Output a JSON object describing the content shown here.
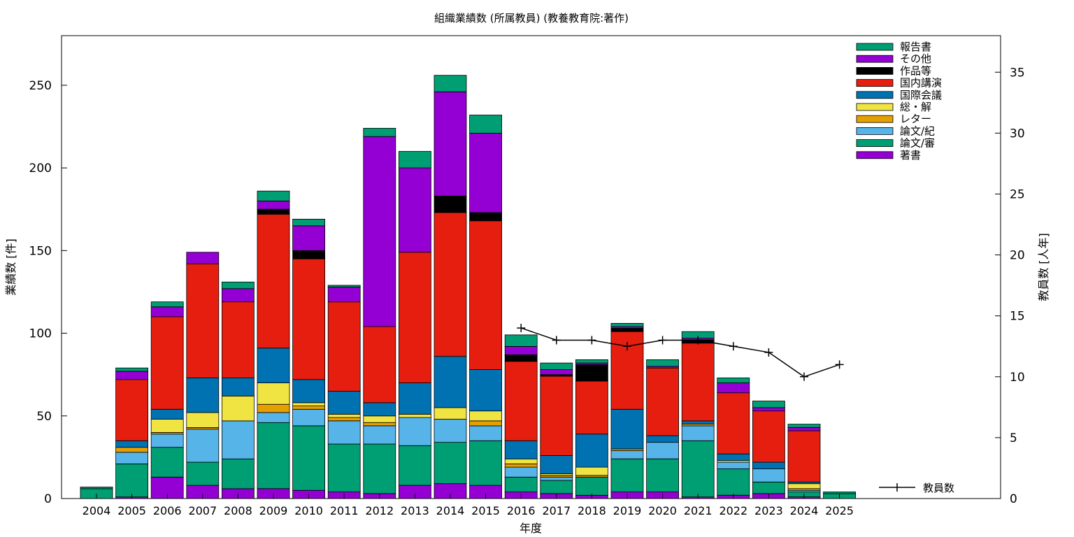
{
  "chart_data": {
    "type": "bar",
    "stacked": true,
    "title": "組織業績数 (所属教員) (教養教育院:著作)",
    "xlabel": "年度",
    "ylabel": "業績数 [件]",
    "y2label": "教員数 [人年]",
    "ylim": [
      0,
      280
    ],
    "y2lim": [
      0,
      38
    ],
    "yticks": [
      0,
      50,
      100,
      150,
      200,
      250
    ],
    "y2ticks": [
      0,
      5,
      10,
      15,
      20,
      25,
      30,
      35
    ],
    "grid": false,
    "legend_position": "top-right",
    "categories": [
      "2004",
      "2005",
      "2006",
      "2007",
      "2008",
      "2009",
      "2010",
      "2011",
      "2012",
      "2013",
      "2014",
      "2015",
      "2016",
      "2017",
      "2018",
      "2019",
      "2020",
      "2021",
      "2022",
      "2023",
      "2024",
      "2025"
    ],
    "series": [
      {
        "name": "著書",
        "color": "#9400d3",
        "values": [
          0,
          1,
          13,
          8,
          6,
          6,
          5,
          4,
          3,
          8,
          9,
          8,
          4,
          3,
          2,
          4,
          4,
          1,
          2,
          3,
          1,
          0
        ]
      },
      {
        "name": "論文/審",
        "color": "#009e73",
        "values": [
          6,
          20,
          18,
          14,
          18,
          40,
          39,
          29,
          30,
          24,
          25,
          27,
          9,
          8,
          11,
          20,
          20,
          34,
          16,
          7,
          3,
          3
        ]
      },
      {
        "name": "論文/紀",
        "color": "#56b4e9",
        "values": [
          0,
          7,
          8,
          20,
          23,
          6,
          10,
          14,
          11,
          17,
          14,
          9,
          6,
          2,
          0,
          5,
          10,
          9,
          4,
          8,
          1,
          0
        ]
      },
      {
        "name": "レター",
        "color": "#e69f00",
        "values": [
          0,
          3,
          1,
          1,
          0,
          5,
          2,
          2,
          2,
          0,
          0,
          3,
          2,
          1,
          1,
          1,
          0,
          1,
          0,
          0,
          1,
          0
        ]
      },
      {
        "name": "総・解",
        "color": "#f0e442",
        "values": [
          0,
          0,
          8,
          9,
          15,
          13,
          2,
          2,
          4,
          2,
          7,
          6,
          3,
          1,
          5,
          0,
          0,
          0,
          1,
          0,
          3,
          0
        ],
        "note": ""
      },
      {
        "name": "国際会議",
        "color": "#0072b2",
        "values": [
          0,
          4,
          6,
          21,
          11,
          21,
          14,
          14,
          8,
          19,
          31,
          25,
          11,
          11,
          20,
          24,
          4,
          2,
          4,
          4,
          1,
          0
        ]
      },
      {
        "name": "国内講演",
        "color": "#e51e10",
        "values": [
          0,
          37,
          56,
          69,
          46,
          81,
          73,
          54,
          46,
          79,
          87,
          90,
          48,
          48,
          32,
          47,
          41,
          47,
          37,
          31,
          31,
          0
        ]
      },
      {
        "name": "作品等",
        "color": "#000000",
        "values": [
          0,
          0,
          0,
          0,
          0,
          3,
          5,
          0,
          0,
          0,
          10,
          5,
          4,
          1,
          10,
          2,
          0,
          2,
          0,
          0,
          0,
          0
        ]
      },
      {
        "name": "その他",
        "color": "#9400d3",
        "values": [
          0,
          5,
          6,
          7,
          8,
          5,
          15,
          9,
          115,
          51,
          63,
          48,
          5,
          3,
          1,
          1,
          1,
          1,
          6,
          2,
          2,
          0
        ]
      },
      {
        "name": "報告書",
        "color": "#009e73",
        "values": [
          1,
          2,
          3,
          0,
          4,
          6,
          4,
          1,
          5,
          10,
          10,
          11,
          7,
          4,
          2,
          2,
          4,
          4,
          3,
          4,
          2,
          1
        ]
      }
    ],
    "line_series": {
      "name": "教員数",
      "axis": "y2",
      "categories": [
        "2016",
        "2017",
        "2018",
        "2019",
        "2020",
        "2021",
        "2022",
        "2023",
        "2024",
        "2025"
      ],
      "values": [
        14,
        13,
        13,
        12.5,
        13,
        13,
        12.5,
        12,
        10,
        11
      ]
    }
  }
}
